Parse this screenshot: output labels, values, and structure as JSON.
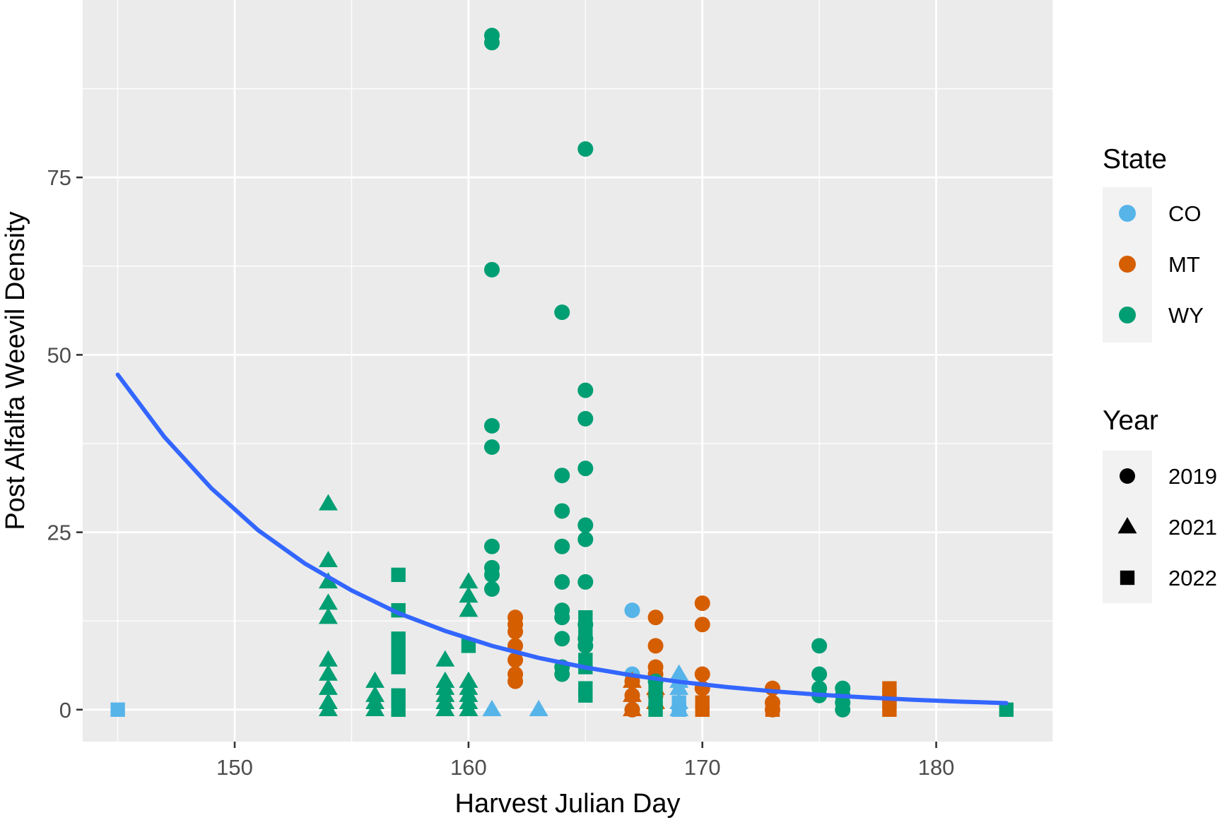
{
  "chart_data": {
    "type": "scatter",
    "title": "",
    "xlabel": "Harvest Julian Day",
    "ylabel": "Post Alfalfa Weevil Density",
    "xlim": [
      143.5,
      185
    ],
    "ylim": [
      -4.5,
      100
    ],
    "xticks": [
      150,
      160,
      170,
      180
    ],
    "yticks": [
      0,
      25,
      50,
      75
    ],
    "grid": true,
    "colors": {
      "CO": "#56b4e9",
      "MT": "#d55e00",
      "WY": "#009e73",
      "fit": "#3366ff",
      "panel": "#ebebeb",
      "grid": "#ffffff"
    },
    "legend_state": {
      "title": "State",
      "entries": [
        {
          "label": "CO",
          "color": "#56b4e9"
        },
        {
          "label": "MT",
          "color": "#d55e00"
        },
        {
          "label": "WY",
          "color": "#009e73"
        }
      ]
    },
    "legend_year": {
      "title": "Year",
      "entries": [
        {
          "label": "2019",
          "shape": "circle"
        },
        {
          "label": "2021",
          "shape": "triangle"
        },
        {
          "label": "2022",
          "shape": "square"
        }
      ]
    },
    "fit_line": {
      "type": "exponential",
      "x": [
        145,
        147,
        149,
        151,
        153,
        155,
        157,
        159,
        161,
        163,
        165,
        167,
        169,
        171,
        173,
        175,
        177,
        179,
        181,
        183
      ],
      "y": [
        47.2,
        38.4,
        31.2,
        25.3,
        20.6,
        16.8,
        13.6,
        11.1,
        9.0,
        7.3,
        5.95,
        4.84,
        3.93,
        3.2,
        2.6,
        2.11,
        1.72,
        1.4,
        1.13,
        0.92
      ]
    },
    "series": [
      {
        "state": "CO",
        "year": "2019",
        "x": [
          167,
          167,
          167
        ],
        "y": [
          14,
          5,
          0
        ]
      },
      {
        "state": "CO",
        "year": "2021",
        "x": [
          161,
          163,
          169,
          169,
          169,
          169,
          169
        ],
        "y": [
          0,
          0,
          5,
          4,
          3,
          1,
          0
        ]
      },
      {
        "state": "CO",
        "year": "2022",
        "x": [
          145,
          169,
          169
        ],
        "y": [
          0,
          1,
          0
        ]
      },
      {
        "state": "MT",
        "year": "2019",
        "x": [
          162,
          162,
          162,
          162,
          162,
          162,
          162,
          167,
          167,
          167,
          168,
          168,
          168,
          168,
          168,
          170,
          170,
          170,
          170,
          173,
          173,
          173
        ],
        "y": [
          13,
          12,
          11,
          9,
          7,
          5,
          4,
          4,
          2,
          0,
          13,
          9,
          6,
          5,
          2,
          15,
          12,
          5,
          3,
          3,
          1,
          0
        ]
      },
      {
        "state": "MT",
        "year": "2021",
        "x": [
          167,
          167,
          167,
          168,
          168
        ],
        "y": [
          4,
          2,
          0,
          3,
          1
        ]
      },
      {
        "state": "MT",
        "year": "2022",
        "x": [
          170,
          170,
          173,
          178,
          178,
          178,
          178
        ],
        "y": [
          1,
          0,
          0,
          3,
          2,
          1,
          0
        ]
      },
      {
        "state": "WY",
        "year": "2019",
        "x": [
          161,
          161,
          161,
          161,
          161,
          161,
          161,
          161,
          161,
          164,
          164,
          164,
          164,
          164,
          164,
          164,
          164,
          164,
          164,
          165,
          165,
          165,
          165,
          165,
          165,
          165,
          165,
          165,
          165,
          168,
          175,
          175,
          175,
          175,
          176,
          176,
          176,
          176
        ],
        "y": [
          95,
          94,
          62,
          40,
          37,
          23,
          20,
          19,
          17,
          56,
          33,
          28,
          23,
          18,
          14,
          13,
          10,
          6,
          5,
          79,
          45,
          41,
          34,
          26,
          24,
          18,
          12,
          10,
          9,
          4,
          9,
          5,
          3,
          2,
          3,
          2,
          1,
          0
        ]
      },
      {
        "state": "WY",
        "year": "2021",
        "x": [
          154,
          154,
          154,
          154,
          154,
          154,
          154,
          154,
          154,
          154,
          156,
          156,
          156,
          156,
          159,
          159,
          159,
          159,
          159,
          159,
          160,
          160,
          160,
          160,
          160,
          160,
          160,
          160,
          160
        ],
        "y": [
          29,
          21,
          18,
          15,
          13,
          7,
          5,
          3,
          1,
          0,
          4,
          2,
          1,
          0,
          7,
          4,
          3,
          2,
          1,
          0,
          18,
          16,
          14,
          4,
          3,
          2,
          1,
          0,
          0
        ]
      },
      {
        "state": "WY",
        "year": "2022",
        "x": [
          157,
          157,
          157,
          157,
          157,
          157,
          157,
          160,
          165,
          165,
          165,
          165,
          165,
          165,
          168,
          168,
          168,
          183
        ],
        "y": [
          19,
          14,
          10,
          8,
          6,
          2,
          0,
          9,
          13,
          11,
          7,
          6,
          3,
          2,
          3,
          1,
          0,
          0
        ]
      }
    ]
  }
}
